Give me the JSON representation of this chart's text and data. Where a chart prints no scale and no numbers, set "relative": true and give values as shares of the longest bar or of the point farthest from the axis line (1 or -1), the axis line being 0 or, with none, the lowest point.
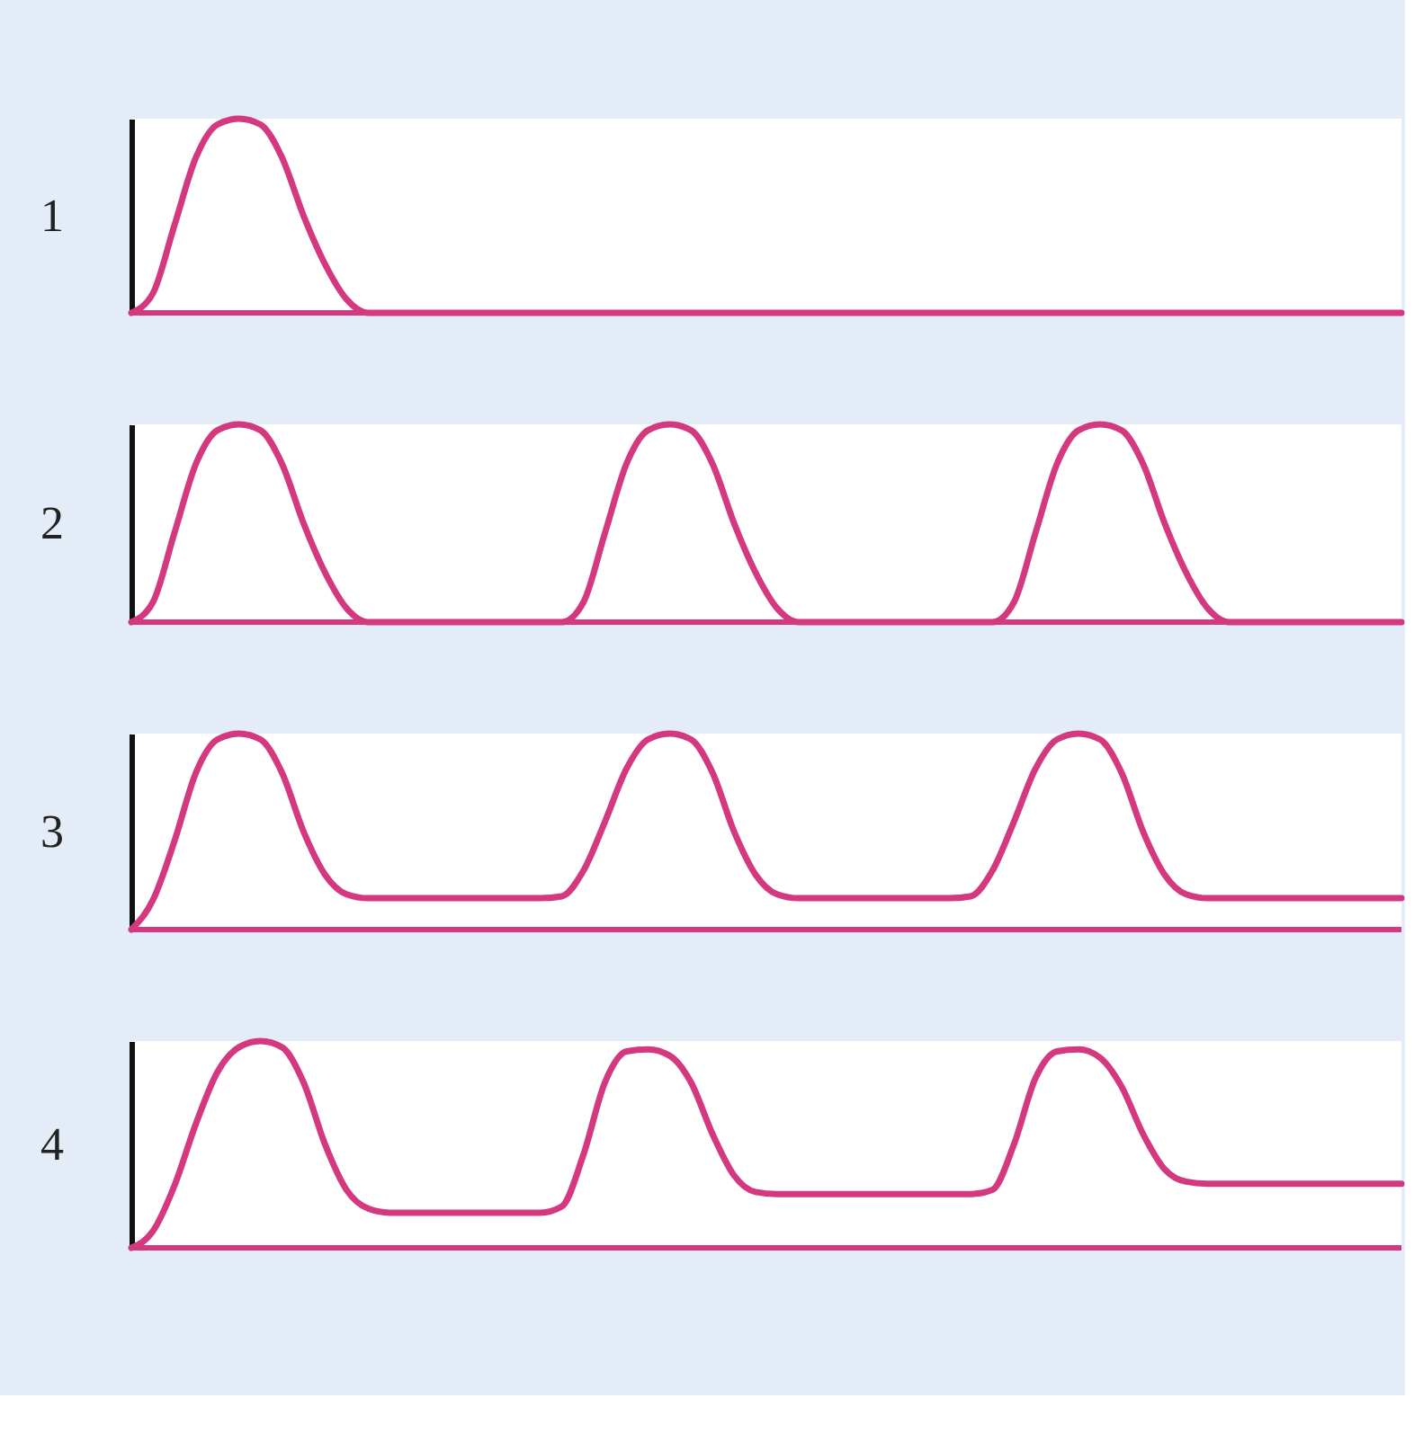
{
  "chart_data": [
    {
      "type": "line",
      "ylabel": "1",
      "relative": true,
      "ref_lines": [
        {
          "axis": "y",
          "value": 0,
          "color": "#d4387f"
        }
      ],
      "tick_labels": false,
      "categories": [
        null,
        null,
        null,
        null,
        null,
        null,
        null,
        null,
        null,
        null,
        null,
        null,
        null,
        null,
        null,
        null,
        null,
        null,
        null,
        null,
        null,
        null,
        null,
        null,
        null,
        null,
        null,
        null,
        null,
        null,
        null,
        null,
        null,
        null,
        null,
        null,
        null,
        null,
        null,
        null,
        null,
        null,
        null,
        null,
        null,
        null,
        null,
        null,
        null,
        null,
        null,
        null,
        null,
        null,
        null,
        null,
        null,
        null,
        null,
        null
      ],
      "series": [
        {
          "color": "#d4387f",
          "values": [
            0,
            0.1,
            0.45,
            0.8,
            0.97,
            1,
            0.97,
            0.8,
            0.5,
            0.25,
            0.07,
            0,
            0,
            0,
            0,
            0,
            0,
            0,
            0,
            0,
            0,
            0,
            0,
            0,
            0,
            0,
            0,
            0,
            0,
            0,
            0,
            0,
            0,
            0,
            0,
            0,
            0,
            0,
            0,
            0,
            0,
            0,
            0,
            0,
            0,
            0,
            0,
            0,
            0,
            0,
            0,
            0,
            0,
            0,
            0,
            0,
            0,
            0,
            0,
            0
          ]
        }
      ]
    },
    {
      "type": "line",
      "ylabel": "2",
      "relative": true,
      "ref_lines": [
        {
          "axis": "y",
          "value": 0,
          "color": "#d4387f"
        }
      ],
      "tick_labels": false,
      "categories": [
        null,
        null,
        null,
        null,
        null,
        null,
        null,
        null,
        null,
        null,
        null,
        null,
        null,
        null,
        null,
        null,
        null,
        null,
        null,
        null,
        null,
        null,
        null,
        null,
        null,
        null,
        null,
        null,
        null,
        null,
        null,
        null,
        null,
        null,
        null,
        null,
        null,
        null,
        null,
        null,
        null,
        null,
        null,
        null,
        null,
        null,
        null,
        null,
        null,
        null,
        null,
        null,
        null,
        null,
        null,
        null,
        null,
        null,
        null,
        null
      ],
      "series": [
        {
          "color": "#d4387f",
          "values": [
            0,
            0.1,
            0.45,
            0.8,
            0.97,
            1,
            0.97,
            0.8,
            0.5,
            0.25,
            0.07,
            0,
            0,
            0,
            0,
            0,
            0,
            0,
            0,
            0,
            0,
            0.1,
            0.45,
            0.8,
            0.97,
            1,
            0.97,
            0.8,
            0.5,
            0.25,
            0.07,
            0,
            0,
            0,
            0,
            0,
            0,
            0,
            0,
            0,
            0,
            0.1,
            0.45,
            0.8,
            0.97,
            1,
            0.97,
            0.8,
            0.5,
            0.25,
            0.07,
            0,
            0,
            0,
            0,
            0,
            0,
            0,
            0,
            0
          ]
        }
      ]
    },
    {
      "type": "line",
      "ylabel": "3",
      "relative": true,
      "ref_lines": [
        {
          "axis": "y",
          "value": 0,
          "color": "#d4387f"
        }
      ],
      "tick_labels": false,
      "categories": [
        null,
        null,
        null,
        null,
        null,
        null,
        null,
        null,
        null,
        null,
        null,
        null,
        null,
        null,
        null,
        null,
        null,
        null,
        null,
        null,
        null,
        null,
        null,
        null,
        null,
        null,
        null,
        null,
        null,
        null,
        null,
        null,
        null,
        null,
        null,
        null,
        null,
        null,
        null,
        null,
        null,
        null,
        null,
        null,
        null,
        null,
        null,
        null,
        null,
        null,
        null,
        null,
        null,
        null,
        null,
        null,
        null,
        null,
        null,
        null
      ],
      "series": [
        {
          "color": "#d4387f",
          "values": [
            0,
            0.15,
            0.45,
            0.8,
            0.97,
            1,
            0.97,
            0.8,
            0.5,
            0.28,
            0.18,
            0.16,
            0.16,
            0.16,
            0.16,
            0.16,
            0.16,
            0.16,
            0.16,
            0.16,
            0.17,
            0.3,
            0.55,
            0.82,
            0.97,
            1,
            0.97,
            0.8,
            0.5,
            0.28,
            0.18,
            0.16,
            0.16,
            0.16,
            0.16,
            0.16,
            0.16,
            0.16,
            0.16,
            0.17,
            0.3,
            0.55,
            0.82,
            0.97,
            1,
            0.97,
            0.8,
            0.5,
            0.28,
            0.18,
            0.16,
            0.16,
            0.16,
            0.16,
            0.16,
            0.16,
            0.16,
            0.16,
            0.16,
            0.16
          ]
        }
      ]
    },
    {
      "type": "line",
      "ylabel": "4",
      "relative": true,
      "ref_lines": [
        {
          "axis": "y",
          "value": 0,
          "color": "#d4387f"
        }
      ],
      "tick_labels": false,
      "categories": [
        null,
        null,
        null,
        null,
        null,
        null,
        null,
        null,
        null,
        null,
        null,
        null,
        null,
        null,
        null,
        null,
        null,
        null,
        null,
        null,
        null,
        null,
        null,
        null,
        null,
        null,
        null,
        null,
        null,
        null,
        null,
        null,
        null,
        null,
        null,
        null,
        null,
        null,
        null,
        null,
        null,
        null,
        null,
        null,
        null,
        null,
        null,
        null,
        null,
        null,
        null,
        null,
        null,
        null,
        null,
        null,
        null,
        null,
        null,
        null
      ],
      "series": [
        {
          "color": "#d4387f",
          "values": [
            0,
            0.08,
            0.3,
            0.6,
            0.85,
            0.97,
            1,
            0.97,
            0.8,
            0.5,
            0.28,
            0.19,
            0.17,
            0.17,
            0.17,
            0.17,
            0.17,
            0.17,
            0.17,
            0.17,
            0.2,
            0.45,
            0.8,
            0.95,
            0.96,
            0.93,
            0.8,
            0.55,
            0.35,
            0.27,
            0.26,
            0.26,
            0.26,
            0.26,
            0.26,
            0.26,
            0.26,
            0.26,
            0.26,
            0.26,
            0.28,
            0.5,
            0.82,
            0.95,
            0.96,
            0.92,
            0.78,
            0.55,
            0.38,
            0.32,
            0.31,
            0.31,
            0.31,
            0.31,
            0.31,
            0.31,
            0.31,
            0.31,
            0.31,
            0.31
          ]
        }
      ]
    }
  ]
}
